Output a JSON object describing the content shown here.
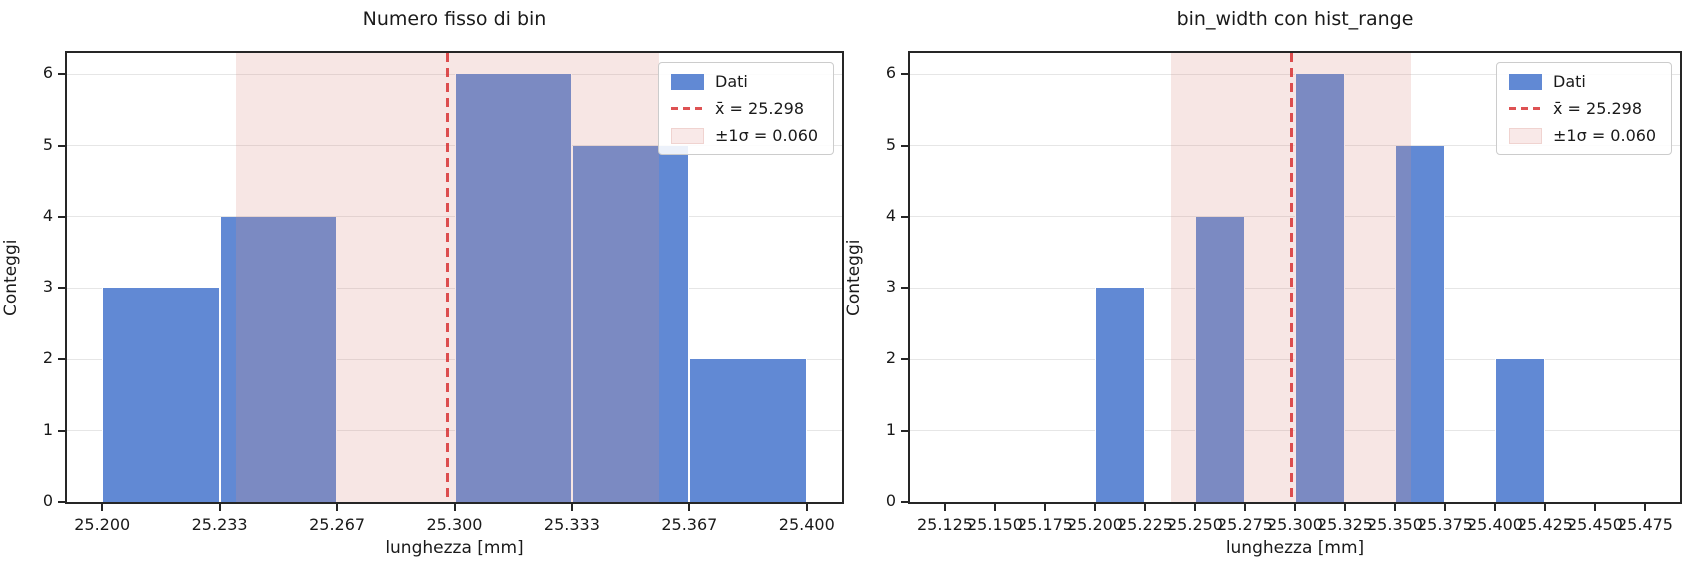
{
  "figure": {
    "background": "#ffffff"
  },
  "colors": {
    "bar": "#6189d4",
    "bar_edge": "#ffffff",
    "sigma_band_fill": "rgba(219,141,132,0.22)",
    "sigma_band_solid": "#f7e6e4",
    "mean_line": "rgba(214,39,40,0.8)",
    "gridline": "#e6e6e6",
    "spine": "#262626",
    "text": "#1a1a1a",
    "legend_border": "#cccccc"
  },
  "chart_data": [
    {
      "type": "bar",
      "subtype": "histogram",
      "title": "Numero fisso di bin",
      "xlabel": "lunghezza [mm]",
      "ylabel": "Conteggi",
      "bin_edges": [
        25.2,
        25.23333,
        25.26667,
        25.3,
        25.33333,
        25.36667,
        25.4
      ],
      "counts": [
        3,
        4,
        0,
        6,
        5,
        2
      ],
      "mean": 25.298,
      "sigma": 0.06,
      "sigma_band": [
        25.238,
        25.358
      ],
      "xlim": [
        25.19,
        25.41
      ],
      "ylim": [
        0,
        6.3
      ],
      "xticks": [
        25.2,
        25.23333,
        25.26667,
        25.3,
        25.33333,
        25.36667,
        25.4
      ],
      "xtick_labels": [
        "25.200",
        "25.233",
        "25.267",
        "25.300",
        "25.333",
        "25.367",
        "25.400"
      ],
      "yticks": [
        0,
        1,
        2,
        3,
        4,
        5,
        6
      ],
      "grid": "horizontal-only",
      "legend_position": "upper right",
      "legend": {
        "data_label": "Dati",
        "mean_label": "x̄ = 25.298",
        "band_label": "±1σ = 0.060"
      }
    },
    {
      "type": "bar",
      "subtype": "histogram",
      "title": "bin_width con hist_range",
      "xlabel": "lunghezza [mm]",
      "ylabel": "Conteggi",
      "bin_edges": [
        25.125,
        25.15,
        25.175,
        25.2,
        25.225,
        25.25,
        25.275,
        25.3,
        25.325,
        25.35,
        25.375,
        25.4,
        25.425,
        25.45,
        25.475
      ],
      "counts": [
        0,
        0,
        0,
        3,
        0,
        4,
        0,
        6,
        0,
        5,
        0,
        2,
        0,
        0
      ],
      "mean": 25.298,
      "sigma": 0.06,
      "sigma_band": [
        25.238,
        25.358
      ],
      "xlim": [
        25.1075,
        25.4925
      ],
      "ylim": [
        0,
        6.3
      ],
      "xticks": [
        25.125,
        25.15,
        25.175,
        25.2,
        25.225,
        25.25,
        25.275,
        25.3,
        25.325,
        25.35,
        25.375,
        25.4,
        25.425,
        25.45,
        25.475
      ],
      "xtick_labels": [
        "25.125",
        "25.150",
        "25.175",
        "25.200",
        "25.225",
        "25.250",
        "25.275",
        "25.300",
        "25.325",
        "25.350",
        "25.375",
        "25.400",
        "25.425",
        "25.450",
        "25.475"
      ],
      "yticks": [
        0,
        1,
        2,
        3,
        4,
        5,
        6
      ],
      "grid": "horizontal-only",
      "legend_position": "upper right",
      "legend": {
        "data_label": "Dati",
        "mean_label": "x̄ = 25.298",
        "band_label": "±1σ = 0.060"
      }
    }
  ]
}
